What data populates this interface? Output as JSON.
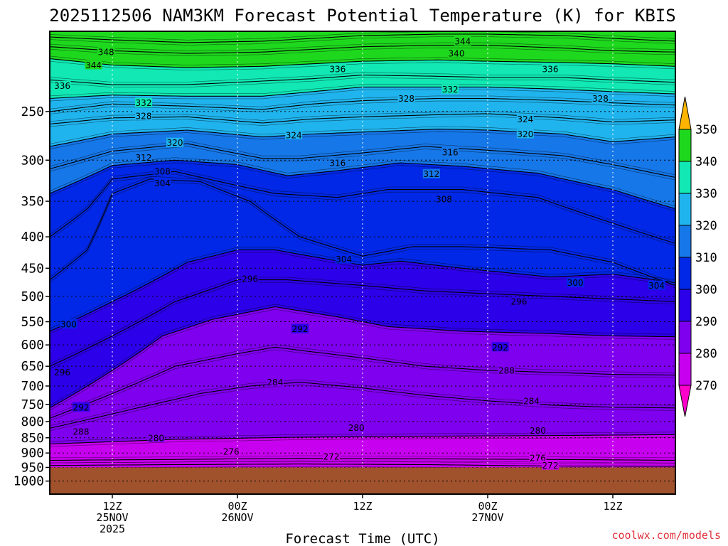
{
  "chart_data": {
    "type": "heatmap",
    "title": "2025112506 NAM3KM Forecast Potential Temperature (K) for KBIS",
    "xlabel": "Forecast Time (UTC)",
    "ylabel": "",
    "x_range_hours": [
      -5,
      45
    ],
    "x_ticks": [
      {
        "hour": 0,
        "line1": "12Z",
        "line2": "25NOV",
        "line3": "2025"
      },
      {
        "hour": 10,
        "line1": "00Z",
        "line2": "26NOV",
        "line3": ""
      },
      {
        "hour": 20,
        "line1": "12Z",
        "line2": "",
        "line3": ""
      },
      {
        "hour": 30,
        "line1": "00Z",
        "line2": "27NOV",
        "line3": ""
      },
      {
        "hour": 40,
        "line1": "12Z",
        "line2": "",
        "line3": ""
      }
    ],
    "y_range_hpa": [
      1050,
      185
    ],
    "y_ticks": [
      250,
      300,
      350,
      400,
      450,
      500,
      550,
      600,
      650,
      700,
      750,
      800,
      850,
      900,
      950,
      1000
    ],
    "colorbar": {
      "levels": [
        270,
        280,
        290,
        300,
        310,
        320,
        330,
        340,
        350
      ],
      "colors": [
        "#ff00cc",
        "#c800f0",
        "#7f00ee",
        "#2c00e8",
        "#0028e6",
        "#1677e8",
        "#20b4ee",
        "#11e8b4",
        "#1ed81e",
        "#f0f000",
        "#ffb400"
      ]
    },
    "surface_pressure_hpa": 950,
    "surface_color": "#a0522d",
    "grid": true,
    "isentropes": [
      {
        "theta": 272,
        "points": [
          [
            -5,
            943
          ],
          [
            5,
            940
          ],
          [
            15,
            938
          ],
          [
            25,
            940
          ],
          [
            35,
            945
          ],
          [
            45,
            946
          ]
        ]
      },
      {
        "theta": 276,
        "points": [
          [
            -5,
            925
          ],
          [
            5,
            922
          ],
          [
            15,
            918
          ],
          [
            25,
            920
          ],
          [
            35,
            922
          ],
          [
            45,
            925
          ]
        ]
      },
      {
        "theta": 280,
        "points": [
          [
            -5,
            870
          ],
          [
            5,
            855
          ],
          [
            15,
            848
          ],
          [
            25,
            845
          ],
          [
            35,
            843
          ],
          [
            45,
            840
          ]
        ]
      },
      {
        "theta": 284,
        "points": [
          [
            -5,
            820
          ],
          [
            2,
            760
          ],
          [
            7,
            720
          ],
          [
            11,
            700
          ],
          [
            15,
            690
          ],
          [
            20,
            705
          ],
          [
            25,
            725
          ],
          [
            30,
            740
          ],
          [
            35,
            752
          ],
          [
            40,
            758
          ],
          [
            45,
            760
          ]
        ]
      },
      {
        "theta": 288,
        "points": [
          [
            -5,
            790
          ],
          [
            0,
            720
          ],
          [
            5,
            650
          ],
          [
            10,
            620
          ],
          [
            13,
            605
          ],
          [
            20,
            630
          ],
          [
            25,
            650
          ],
          [
            30,
            660
          ],
          [
            35,
            665
          ],
          [
            40,
            670
          ],
          [
            45,
            672
          ]
        ]
      },
      {
        "theta": 292,
        "points": [
          [
            -5,
            760
          ],
          [
            0,
            660
          ],
          [
            4,
            580
          ],
          [
            8,
            545
          ],
          [
            13,
            520
          ],
          [
            18,
            540
          ],
          [
            22,
            560
          ],
          [
            28,
            570
          ],
          [
            35,
            575
          ],
          [
            40,
            580
          ],
          [
            45,
            582
          ]
        ]
      },
      {
        "theta": 296,
        "points": [
          [
            -5,
            650
          ],
          [
            0,
            580
          ],
          [
            5,
            510
          ],
          [
            10,
            470
          ],
          [
            14,
            470
          ],
          [
            20,
            480
          ],
          [
            25,
            490
          ],
          [
            30,
            495
          ],
          [
            35,
            500
          ],
          [
            40,
            505
          ],
          [
            45,
            510
          ]
        ]
      },
      {
        "theta": 300,
        "points": [
          [
            -5,
            570
          ],
          [
            0,
            510
          ],
          [
            6,
            440
          ],
          [
            10,
            420
          ],
          [
            13,
            420
          ],
          [
            20,
            445
          ],
          [
            23,
            438
          ],
          [
            28,
            450
          ],
          [
            35,
            465
          ],
          [
            40,
            460
          ],
          [
            45,
            475
          ]
        ]
      },
      {
        "theta": 304,
        "points": [
          [
            -5,
            470
          ],
          [
            -2,
            420
          ],
          [
            0,
            340
          ],
          [
            3,
            322
          ],
          [
            7,
            325
          ],
          [
            11,
            350
          ],
          [
            15,
            400
          ],
          [
            20,
            430
          ],
          [
            24,
            415
          ],
          [
            28,
            415
          ],
          [
            35,
            420
          ],
          [
            40,
            440
          ],
          [
            45,
            480
          ]
        ]
      },
      {
        "theta": 308,
        "points": [
          [
            -5,
            400
          ],
          [
            -2,
            360
          ],
          [
            0,
            322
          ],
          [
            5,
            313
          ],
          [
            10,
            330
          ],
          [
            13,
            340
          ],
          [
            18,
            345
          ],
          [
            22,
            335
          ],
          [
            28,
            335
          ],
          [
            34,
            345
          ],
          [
            40,
            380
          ],
          [
            45,
            410
          ]
        ]
      },
      {
        "theta": 312,
        "points": [
          [
            -5,
            340
          ],
          [
            0,
            306
          ],
          [
            5,
            300
          ],
          [
            10,
            305
          ],
          [
            14,
            318
          ],
          [
            18,
            312
          ],
          [
            23,
            303
          ],
          [
            28,
            307
          ],
          [
            34,
            315
          ],
          [
            40,
            335
          ],
          [
            45,
            360
          ]
        ]
      },
      {
        "theta": 316,
        "points": [
          [
            -5,
            310
          ],
          [
            0,
            290
          ],
          [
            6,
            282
          ],
          [
            12,
            298
          ],
          [
            15,
            298
          ],
          [
            20,
            292
          ],
          [
            25,
            285
          ],
          [
            30,
            289
          ],
          [
            36,
            295
          ],
          [
            40,
            305
          ],
          [
            45,
            320
          ]
        ]
      },
      {
        "theta": 320,
        "points": [
          [
            -5,
            285
          ],
          [
            0,
            272
          ],
          [
            6,
            268
          ],
          [
            12,
            275
          ],
          [
            16,
            272
          ],
          [
            20,
            270
          ],
          [
            26,
            267
          ],
          [
            30,
            268
          ],
          [
            36,
            272
          ],
          [
            40,
            280
          ],
          [
            45,
            275
          ]
        ]
      },
      {
        "theta": 324,
        "points": [
          [
            -5,
            262
          ],
          [
            0,
            256
          ],
          [
            6,
            255
          ],
          [
            12,
            261
          ],
          [
            16,
            257
          ],
          [
            20,
            255
          ],
          [
            26,
            253
          ],
          [
            30,
            252
          ],
          [
            36,
            256
          ],
          [
            40,
            260
          ],
          [
            45,
            258
          ]
        ]
      },
      {
        "theta": 328,
        "points": [
          [
            -5,
            250
          ],
          [
            0,
            243
          ],
          [
            6,
            245
          ],
          [
            12,
            248
          ],
          [
            16,
            243
          ],
          [
            20,
            240
          ],
          [
            26,
            238
          ],
          [
            30,
            238
          ],
          [
            36,
            240
          ],
          [
            40,
            242
          ],
          [
            45,
            244
          ]
        ]
      },
      {
        "theta": 332,
        "points": [
          [
            -5,
            238
          ],
          [
            0,
            235
          ],
          [
            6,
            236
          ],
          [
            12,
            236
          ],
          [
            16,
            232
          ],
          [
            20,
            228
          ],
          [
            26,
            228
          ],
          [
            30,
            228
          ],
          [
            36,
            230
          ],
          [
            40,
            232
          ],
          [
            45,
            234
          ]
        ]
      },
      {
        "theta": 336,
        "points": [
          [
            -5,
            222
          ],
          [
            0,
            226
          ],
          [
            6,
            226
          ],
          [
            12,
            223
          ],
          [
            16,
            221
          ],
          [
            20,
            218
          ],
          [
            26,
            219
          ],
          [
            30,
            220
          ],
          [
            36,
            220
          ],
          [
            40,
            222
          ],
          [
            45,
            224
          ]
        ]
      },
      {
        "theta": 340,
        "points": [
          [
            -5,
            205
          ],
          [
            0,
            210
          ],
          [
            6,
            212
          ],
          [
            12,
            211
          ],
          [
            16,
            209
          ],
          [
            20,
            207
          ],
          [
            26,
            206
          ],
          [
            30,
            207
          ],
          [
            36,
            208
          ],
          [
            40,
            209
          ],
          [
            45,
            211
          ]
        ]
      },
      {
        "theta": 344,
        "points": [
          [
            -5,
            196
          ],
          [
            0,
            199
          ],
          [
            6,
            201
          ],
          [
            12,
            200
          ],
          [
            16,
            198
          ],
          [
            20,
            196
          ],
          [
            26,
            195
          ],
          [
            30,
            195
          ],
          [
            36,
            197
          ],
          [
            40,
            199
          ],
          [
            45,
            200
          ]
        ]
      },
      {
        "theta": 348,
        "points": [
          [
            -5,
            189
          ],
          [
            0,
            191
          ],
          [
            6,
            193
          ],
          [
            12,
            192
          ],
          [
            16,
            190
          ],
          [
            20,
            188
          ],
          [
            26,
            187
          ],
          [
            30,
            187
          ],
          [
            36,
            188
          ],
          [
            40,
            190
          ],
          [
            45,
            192
          ]
        ]
      }
    ],
    "contour_labels": [
      {
        "text": "348",
        "hour": -0.5,
        "hpa": 200
      },
      {
        "text": "344",
        "hour": -1.5,
        "hpa": 210
      },
      {
        "text": "344",
        "hour": 28,
        "hpa": 192
      },
      {
        "text": "340",
        "hour": 27.5,
        "hpa": 201
      },
      {
        "text": "336",
        "hour": -4,
        "hpa": 227
      },
      {
        "text": "336",
        "hour": 18,
        "hpa": 213
      },
      {
        "text": "336",
        "hour": 35,
        "hpa": 213
      },
      {
        "text": "332",
        "hour": 2.5,
        "hpa": 242
      },
      {
        "text": "332",
        "hour": 27,
        "hpa": 230
      },
      {
        "text": "328",
        "hour": 2.5,
        "hpa": 254
      },
      {
        "text": "328",
        "hour": 23.5,
        "hpa": 238
      },
      {
        "text": "328",
        "hour": 39,
        "hpa": 238
      },
      {
        "text": "324",
        "hour": 14.5,
        "hpa": 273
      },
      {
        "text": "324",
        "hour": 33,
        "hpa": 257
      },
      {
        "text": "320",
        "hour": 5,
        "hpa": 281
      },
      {
        "text": "320",
        "hour": 33,
        "hpa": 272
      },
      {
        "text": "316",
        "hour": 18,
        "hpa": 303
      },
      {
        "text": "316",
        "hour": 27,
        "hpa": 291
      },
      {
        "text": "312",
        "hour": 2.5,
        "hpa": 297
      },
      {
        "text": "312",
        "hour": 25.5,
        "hpa": 316
      },
      {
        "text": "308",
        "hour": 4,
        "hpa": 313
      },
      {
        "text": "308",
        "hour": 26.5,
        "hpa": 347
      },
      {
        "text": "304",
        "hour": 4,
        "hpa": 327
      },
      {
        "text": "304",
        "hour": 18.5,
        "hpa": 435
      },
      {
        "text": "304",
        "hour": 43.5,
        "hpa": 480
      },
      {
        "text": "300",
        "hour": -3.5,
        "hpa": 555
      },
      {
        "text": "300",
        "hour": 37,
        "hpa": 475
      },
      {
        "text": "296",
        "hour": 11,
        "hpa": 468
      },
      {
        "text": "296",
        "hour": 32.5,
        "hpa": 510
      },
      {
        "text": "296",
        "hour": -4,
        "hpa": 665
      },
      {
        "text": "292",
        "hour": 15,
        "hpa": 565
      },
      {
        "text": "292",
        "hour": 31,
        "hpa": 605
      },
      {
        "text": "292",
        "hour": -2.5,
        "hpa": 758
      },
      {
        "text": "288",
        "hour": 31.5,
        "hpa": 660
      },
      {
        "text": "288",
        "hour": -2.5,
        "hpa": 830
      },
      {
        "text": "284",
        "hour": 13,
        "hpa": 690
      },
      {
        "text": "284",
        "hour": 33.5,
        "hpa": 740
      },
      {
        "text": "280",
        "hour": 3.5,
        "hpa": 850
      },
      {
        "text": "280",
        "hour": 19.5,
        "hpa": 818
      },
      {
        "text": "280",
        "hour": 34,
        "hpa": 827
      },
      {
        "text": "276",
        "hour": 9.5,
        "hpa": 895
      },
      {
        "text": "276",
        "hour": 34,
        "hpa": 917
      },
      {
        "text": "272",
        "hour": 17.5,
        "hpa": 912
      },
      {
        "text": "272",
        "hour": 35,
        "hpa": 943
      }
    ]
  },
  "watermark": "coolwx.com/models"
}
